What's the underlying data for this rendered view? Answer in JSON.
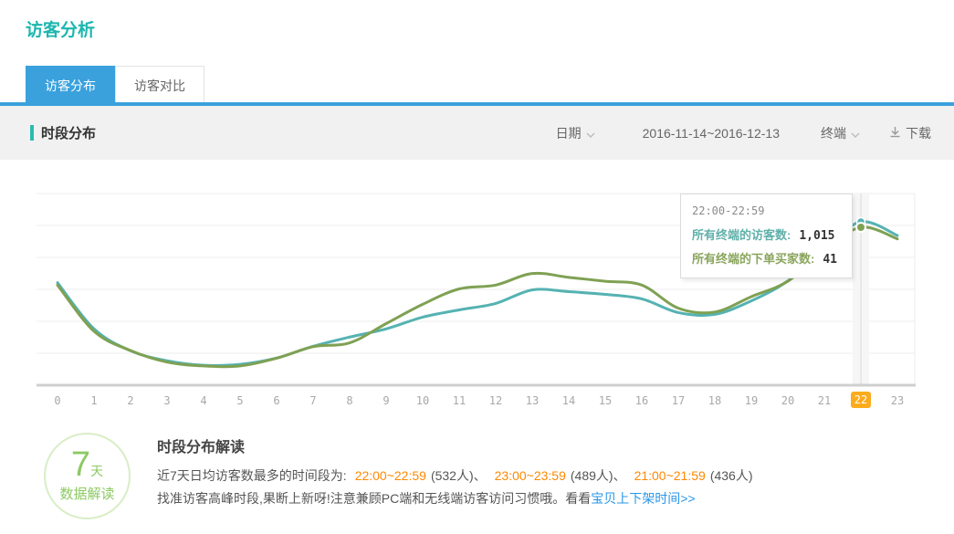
{
  "header": {
    "title": "访客分析"
  },
  "tabs": [
    {
      "label": "访客分布",
      "active": true
    },
    {
      "label": "访客对比",
      "active": false
    }
  ],
  "toolbar": {
    "section_title": "时段分布",
    "date_dimension_label": "日期",
    "date_range": "2016-11-14~2016-12-13",
    "terminal_label": "终端",
    "download_label": "下载"
  },
  "chart_data": {
    "type": "line",
    "title": "",
    "xlabel": "",
    "ylabel": "",
    "x": [
      0,
      1,
      2,
      3,
      4,
      5,
      6,
      7,
      8,
      9,
      10,
      11,
      12,
      13,
      14,
      15,
      16,
      17,
      18,
      19,
      20,
      21,
      22,
      23
    ],
    "y_axis_labels_visible": false,
    "grid": true,
    "legend_position": "none",
    "highlighted_x": 22,
    "series": [
      {
        "name": "所有终端的访客数",
        "color": "#55b2b2",
        "values": [
          637,
          350,
          214,
          152,
          124,
          130,
          169,
          242,
          299,
          350,
          423,
          468,
          508,
          592,
          581,
          564,
          536,
          451,
          440,
          524,
          648,
          846,
          1015,
          930
        ]
      },
      {
        "name": "所有终端的下单买家数",
        "color": "#7fa153",
        "values": [
          26,
          14,
          9,
          6,
          5,
          5,
          7,
          10,
          11,
          16,
          21,
          25,
          26,
          29,
          28,
          27,
          26,
          20,
          19,
          23,
          27,
          35,
          41,
          38
        ]
      }
    ],
    "tooltip": {
      "title": "22:00-22:59",
      "rows": [
        {
          "label": "所有终端的访客数:",
          "value": "1,015",
          "label_color": "#5fb0aa"
        },
        {
          "label": "所有终端的下单买家数:",
          "value": "41",
          "label_color": "#8aa55c"
        }
      ]
    }
  },
  "insight": {
    "badge_number": "7",
    "badge_unit": "天",
    "badge_line2": "数据解读",
    "heading": "时段分布解读",
    "line1_prefix": "近7天日均访客数最多的时间段为:",
    "peaks": [
      {
        "time": "22:00~22:59",
        "count": "(532人)、"
      },
      {
        "time": "23:00~23:59",
        "count": "(489人)、"
      },
      {
        "time": "21:00~21:59",
        "count": "(436人)"
      }
    ],
    "line2_text": "找准访客高峰时段,果断上新呀!注意兼顾PC端和无线端访客访问习惯哦。看看",
    "line2_link": "宝贝上下架时间>>"
  },
  "colors": {
    "accent_teal": "#1cb6ae",
    "tab_blue": "#3aa1dd",
    "visitors_line": "#55b2b2",
    "buyers_line": "#7fa153",
    "highlight_orange": "#fbab1c",
    "peak_text_orange": "#ff8800",
    "link_blue": "#2a96e8",
    "insight_green": "#8dc963"
  }
}
